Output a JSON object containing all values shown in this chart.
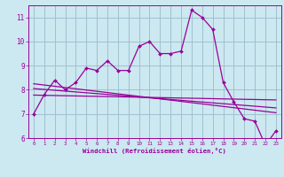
{
  "x": [
    0,
    1,
    2,
    3,
    4,
    5,
    6,
    7,
    8,
    9,
    10,
    11,
    12,
    13,
    14,
    15,
    16,
    17,
    18,
    19,
    20,
    21,
    22,
    23
  ],
  "y_main": [
    7.0,
    7.8,
    8.4,
    8.0,
    8.3,
    8.9,
    8.8,
    9.2,
    8.8,
    8.8,
    9.8,
    10.0,
    9.5,
    9.5,
    9.6,
    11.3,
    11.0,
    10.5,
    8.3,
    7.5,
    6.8,
    6.7,
    5.7,
    6.3
  ],
  "line_color": "#990099",
  "marker_color": "#990099",
  "bg_color": "#cce8f0",
  "grid_color": "#99bbcc",
  "xlabel": "Windchill (Refroidissement éolien,°C)",
  "xlim": [
    -0.5,
    23.5
  ],
  "ylim": [
    6,
    11.5
  ],
  "yticks": [
    6,
    7,
    8,
    9,
    10,
    11
  ],
  "xticks": [
    0,
    1,
    2,
    3,
    4,
    5,
    6,
    7,
    8,
    9,
    10,
    11,
    12,
    13,
    14,
    15,
    16,
    17,
    18,
    19,
    20,
    21,
    22,
    23
  ],
  "trend_lines": [
    {
      "start_x": 0,
      "start_y": 7.78,
      "end_x": 23,
      "end_y": 7.58
    },
    {
      "start_x": 0,
      "start_y": 8.05,
      "end_x": 23,
      "end_y": 7.25
    },
    {
      "start_x": 0,
      "start_y": 8.25,
      "end_x": 23,
      "end_y": 7.05
    }
  ]
}
